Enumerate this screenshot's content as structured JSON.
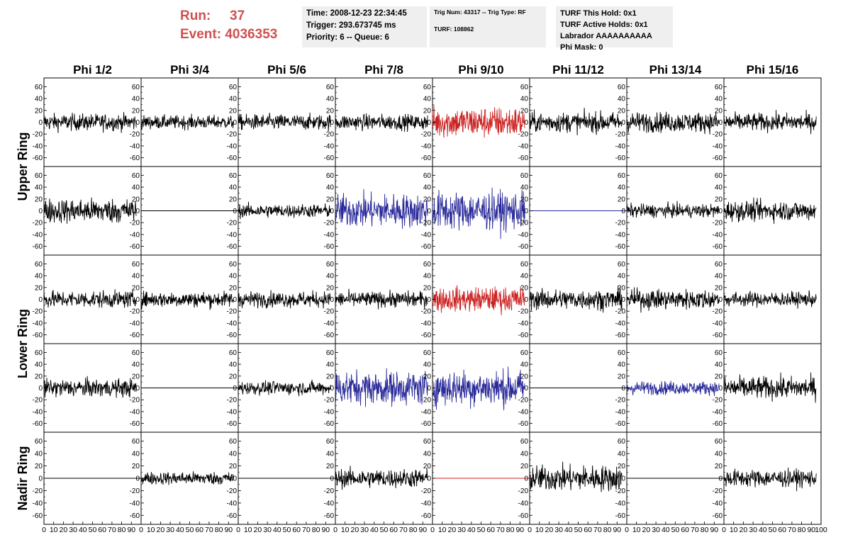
{
  "header": {
    "run_label": "Run:",
    "run_value": "37",
    "event_label": "Event:",
    "event_value": "4036353"
  },
  "info_boxes": [
    {
      "lines": [
        "Time: 2008-12-23 22:34:45",
        "Trigger: 293.673745 ms",
        "Priority: 6 -- Queue: 6"
      ]
    },
    {
      "lines": [
        "Trig Num: 43317 -- Trig Type: RF",
        "",
        "TURF: 108862"
      ]
    },
    {
      "lines": [
        "TURF This Hold: 0x1",
        "TURF Active Holds: 0x1",
        "Labrador AAAAAAAAAA",
        "Phi Mask: 0"
      ]
    }
  ],
  "colors": {
    "normal": "#000000",
    "red": "#cc2222",
    "blue": "#2a2a9a",
    "title_red": "#d05050",
    "info_bg": "#efefef"
  },
  "chart_data": {
    "type": "line",
    "columns": [
      "Phi 1/2",
      "Phi 3/4",
      "Phi 5/6",
      "Phi 7/8",
      "Phi 9/10",
      "Phi 11/12",
      "Phi 13/14",
      "Phi 15/16"
    ],
    "rings": [
      "Upper Ring",
      "Lower Ring",
      "Nadir Ring"
    ],
    "xlim": [
      0,
      100
    ],
    "ylim": [
      -70,
      70
    ],
    "y_ticks": [
      -60,
      -40,
      -20,
      0,
      20,
      40,
      60
    ],
    "x_ticks": [
      0,
      10,
      20,
      30,
      40,
      50,
      60,
      70,
      80,
      90,
      100
    ],
    "rows": [
      {
        "ring": "Upper Ring",
        "traces": [
          {
            "color": "black",
            "flat": false,
            "amplitude": 15
          },
          {
            "color": "black",
            "flat": false,
            "amplitude": 12
          },
          {
            "color": "black",
            "flat": false,
            "amplitude": 14
          },
          {
            "color": "black",
            "flat": false,
            "amplitude": 14
          },
          {
            "color": "red",
            "flat": false,
            "amplitude": 28
          },
          {
            "color": "black",
            "flat": false,
            "amplitude": 18
          },
          {
            "color": "black",
            "flat": false,
            "amplitude": 18
          },
          {
            "color": "black",
            "flat": false,
            "amplitude": 16
          }
        ]
      },
      {
        "ring": "Upper Ring",
        "traces": [
          {
            "color": "black",
            "flat": false,
            "amplitude": 22
          },
          {
            "color": "black",
            "flat": true,
            "amplitude": 0
          },
          {
            "color": "black",
            "flat": false,
            "amplitude": 12
          },
          {
            "color": "blue",
            "flat": false,
            "amplitude": 30
          },
          {
            "color": "blue",
            "flat": false,
            "amplitude": 34
          },
          {
            "color": "blue",
            "flat": true,
            "amplitude": 0
          },
          {
            "color": "black",
            "flat": false,
            "amplitude": 12
          },
          {
            "color": "black",
            "flat": false,
            "amplitude": 18
          }
        ]
      },
      {
        "ring": "Lower Ring",
        "traces": [
          {
            "color": "black",
            "flat": false,
            "amplitude": 15
          },
          {
            "color": "black",
            "flat": false,
            "amplitude": 14
          },
          {
            "color": "black",
            "flat": false,
            "amplitude": 14
          },
          {
            "color": "black",
            "flat": false,
            "amplitude": 14
          },
          {
            "color": "red",
            "flat": false,
            "amplitude": 22
          },
          {
            "color": "black",
            "flat": false,
            "amplitude": 18
          },
          {
            "color": "black",
            "flat": false,
            "amplitude": 18
          },
          {
            "color": "black",
            "flat": false,
            "amplitude": 13
          }
        ]
      },
      {
        "ring": "Lower Ring",
        "traces": [
          {
            "color": "black",
            "flat": false,
            "amplitude": 16
          },
          {
            "color": "black",
            "flat": true,
            "amplitude": 0
          },
          {
            "color": "black",
            "flat": false,
            "amplitude": 12
          },
          {
            "color": "blue",
            "flat": false,
            "amplitude": 30
          },
          {
            "color": "blue",
            "flat": false,
            "amplitude": 32
          },
          {
            "color": "black",
            "flat": true,
            "amplitude": 0
          },
          {
            "color": "blue",
            "flat": false,
            "amplitude": 12
          },
          {
            "color": "black",
            "flat": false,
            "amplitude": 20
          }
        ]
      },
      {
        "ring": "Nadir Ring",
        "traces": [
          {
            "color": "black",
            "flat": true,
            "amplitude": 0
          },
          {
            "color": "black",
            "flat": false,
            "amplitude": 11
          },
          {
            "color": "black",
            "flat": true,
            "amplitude": 0
          },
          {
            "color": "black",
            "flat": false,
            "amplitude": 16
          },
          {
            "color": "red",
            "flat": true,
            "amplitude": 0
          },
          {
            "color": "black",
            "flat": false,
            "amplitude": 22
          },
          {
            "color": "black",
            "flat": true,
            "amplitude": 0
          },
          {
            "color": "black",
            "flat": false,
            "amplitude": 15
          }
        ]
      }
    ]
  }
}
